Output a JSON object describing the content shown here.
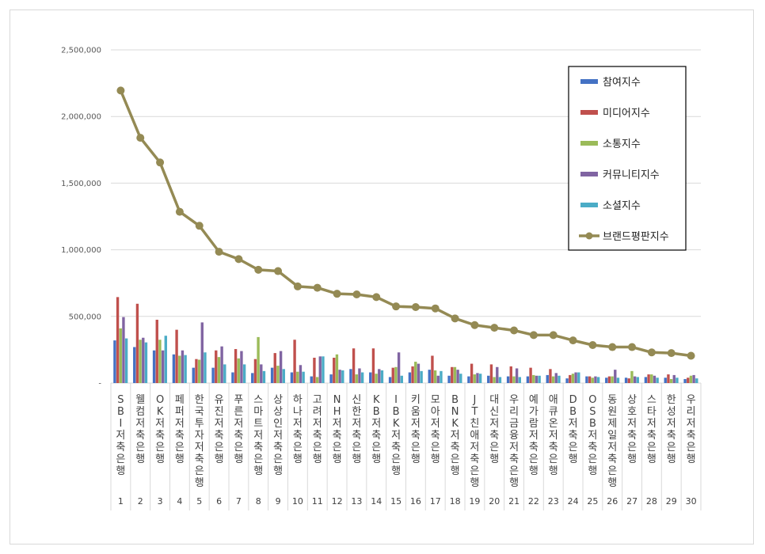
{
  "chart_data": {
    "type": "bar",
    "title": "",
    "xlabel": "",
    "ylabel": "",
    "ylim": [
      0,
      2500000
    ],
    "yticks": [
      0,
      500000,
      1000000,
      1500000,
      2000000,
      2500000
    ],
    "ytick_labels": [
      "-",
      "500,000",
      "1,000,000",
      "1,500,000",
      "2,000,000",
      "2,500,000"
    ],
    "grid": true,
    "legend_position": "top-right",
    "categories": [
      "SBI저축은행",
      "웰컴저축은행",
      "OK저축은행",
      "페퍼저축은행",
      "한국투자저축은행",
      "유진저축은행",
      "푸른저축은행",
      "스마트저축은행",
      "상상인저축은행",
      "하나저축은행",
      "고려저축은행",
      "NH저축은행",
      "신한저축은행",
      "KB저축은행",
      "IBK저축은행",
      "키움저축은행",
      "모아저축은행",
      "BNK저축은행",
      "JT친애저축은행",
      "대신저축은행",
      "우리금융저축은행",
      "예가람저축은행",
      "애큐온저축은행",
      "DB저축은행",
      "OSB저축은행",
      "동원제일저축은행",
      "상호저축은행",
      "스타저축은행",
      "한성저축은행",
      "우리저축은행"
    ],
    "ranks": [
      "1",
      "2",
      "3",
      "4",
      "5",
      "6",
      "7",
      "8",
      "9",
      "10",
      "11",
      "12",
      "13",
      "14",
      "15",
      "16",
      "17",
      "18",
      "19",
      "20",
      "21",
      "22",
      "23",
      "24",
      "25",
      "26",
      "27",
      "28",
      "29",
      "30"
    ],
    "series": [
      {
        "name": "참여지수",
        "color": "#4472c4",
        "kind": "bar",
        "values": [
          320000,
          270000,
          245000,
          215000,
          115000,
          115000,
          80000,
          75000,
          115000,
          80000,
          50000,
          65000,
          105000,
          80000,
          45000,
          80000,
          100000,
          55000,
          50000,
          55000,
          50000,
          50000,
          60000,
          35000,
          50000,
          40000,
          40000,
          45000,
          40000,
          30000
        ]
      },
      {
        "name": "미디어지수",
        "color": "#c0504d",
        "kind": "bar",
        "values": [
          645000,
          595000,
          475000,
          400000,
          180000,
          245000,
          255000,
          180000,
          225000,
          325000,
          190000,
          190000,
          260000,
          260000,
          115000,
          125000,
          205000,
          120000,
          145000,
          140000,
          125000,
          115000,
          105000,
          60000,
          50000,
          50000,
          35000,
          65000,
          65000,
          40000
        ]
      },
      {
        "name": "소통지수",
        "color": "#9bbb59",
        "kind": "bar",
        "values": [
          410000,
          325000,
          325000,
          205000,
          175000,
          195000,
          185000,
          345000,
          130000,
          85000,
          45000,
          215000,
          65000,
          70000,
          120000,
          160000,
          95000,
          120000,
          65000,
          45000,
          50000,
          60000,
          50000,
          70000,
          40000,
          50000,
          90000,
          65000,
          30000,
          55000
        ]
      },
      {
        "name": "커뮤니티지수",
        "color": "#8064a2",
        "kind": "bar",
        "values": [
          495000,
          340000,
          245000,
          245000,
          455000,
          275000,
          240000,
          140000,
          240000,
          135000,
          200000,
          100000,
          110000,
          105000,
          230000,
          145000,
          55000,
          100000,
          75000,
          120000,
          110000,
          55000,
          75000,
          80000,
          50000,
          100000,
          50000,
          55000,
          60000,
          60000
        ]
      },
      {
        "name": "소셜지수",
        "color": "#4bacc6",
        "kind": "bar",
        "values": [
          335000,
          305000,
          355000,
          210000,
          230000,
          140000,
          140000,
          90000,
          105000,
          85000,
          200000,
          95000,
          80000,
          95000,
          55000,
          90000,
          90000,
          70000,
          70000,
          45000,
          45000,
          55000,
          55000,
          80000,
          45000,
          40000,
          45000,
          40000,
          40000,
          35000
        ]
      },
      {
        "name": "브랜드평판지수",
        "color": "#948a54",
        "kind": "line",
        "values": [
          2195000,
          1840000,
          1655000,
          1285000,
          1180000,
          985000,
          930000,
          850000,
          840000,
          725000,
          715000,
          670000,
          665000,
          645000,
          575000,
          570000,
          560000,
          485000,
          435000,
          415000,
          395000,
          360000,
          360000,
          320000,
          285000,
          270000,
          270000,
          230000,
          225000,
          205000
        ]
      }
    ]
  }
}
